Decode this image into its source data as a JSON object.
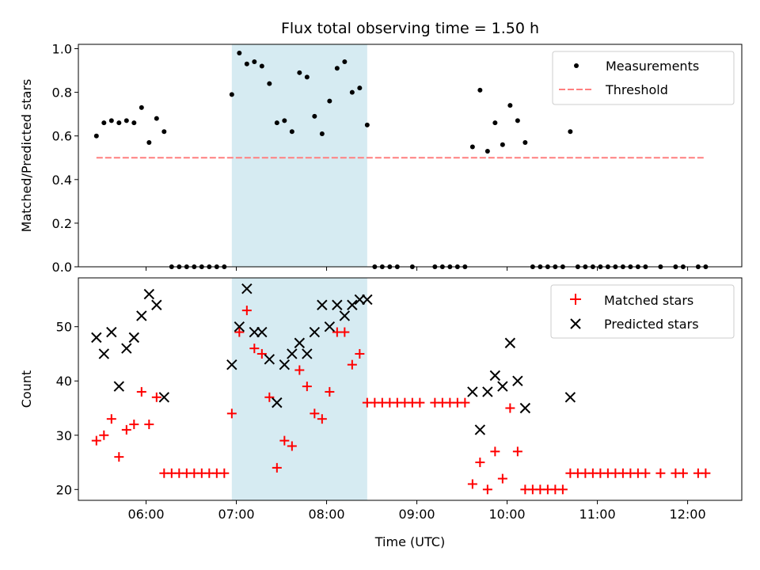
{
  "chart_data": [
    {
      "type": "scatter",
      "title": "Flux total observing time = 1.50 h",
      "xlabel": "",
      "ylabel": "Matched/Predicted stars",
      "ylim": [
        0,
        1.02
      ],
      "xlim": [
        "05:15",
        "12:36"
      ],
      "x_ticks": [
        "06:00",
        "07:00",
        "08:00",
        "09:00",
        "10:00",
        "11:00",
        "12:00"
      ],
      "y_ticks": [
        "0.0",
        "0.2",
        "0.4",
        "0.6",
        "0.8",
        "1.0"
      ],
      "shaded_span": [
        "06:57",
        "08:27"
      ],
      "shaded_color": "#add8e6",
      "legend_position": "upper right",
      "series": [
        {
          "name": "Measurements",
          "marker": "dot",
          "color": "#000000",
          "points": [
            [
              "05:27",
              0.6
            ],
            [
              "05:32",
              0.66
            ],
            [
              "05:37",
              0.67
            ],
            [
              "05:42",
              0.66
            ],
            [
              "05:47",
              0.67
            ],
            [
              "05:52",
              0.66
            ],
            [
              "05:57",
              0.73
            ],
            [
              "06:02",
              0.57
            ],
            [
              "06:07",
              0.68
            ],
            [
              "06:12",
              0.62
            ],
            [
              "06:17",
              0
            ],
            [
              "06:22",
              0
            ],
            [
              "06:27",
              0
            ],
            [
              "06:32",
              0
            ],
            [
              "06:37",
              0
            ],
            [
              "06:42",
              0
            ],
            [
              "06:47",
              0
            ],
            [
              "06:52",
              0
            ],
            [
              "06:57",
              0.79
            ],
            [
              "07:02",
              0.98
            ],
            [
              "07:07",
              0.93
            ],
            [
              "07:12",
              0.94
            ],
            [
              "07:17",
              0.92
            ],
            [
              "07:22",
              0.84
            ],
            [
              "07:27",
              0.66
            ],
            [
              "07:32",
              0.67
            ],
            [
              "07:37",
              0.62
            ],
            [
              "07:42",
              0.89
            ],
            [
              "07:47",
              0.87
            ],
            [
              "07:52",
              0.69
            ],
            [
              "07:57",
              0.61
            ],
            [
              "08:02",
              0.76
            ],
            [
              "08:07",
              0.91
            ],
            [
              "08:12",
              0.94
            ],
            [
              "08:17",
              0.8
            ],
            [
              "08:22",
              0.82
            ],
            [
              "08:27",
              0.65
            ],
            [
              "08:32",
              0
            ],
            [
              "08:37",
              0
            ],
            [
              "08:42",
              0
            ],
            [
              "08:47",
              0
            ],
            [
              "08:57",
              0
            ],
            [
              "09:12",
              0
            ],
            [
              "09:17",
              0
            ],
            [
              "09:22",
              0
            ],
            [
              "09:27",
              0
            ],
            [
              "09:32",
              0
            ],
            [
              "09:37",
              0.55
            ],
            [
              "09:42",
              0.81
            ],
            [
              "09:47",
              0.53
            ],
            [
              "09:52",
              0.66
            ],
            [
              "09:57",
              0.56
            ],
            [
              "10:02",
              0.74
            ],
            [
              "10:07",
              0.67
            ],
            [
              "10:12",
              0.57
            ],
            [
              "10:17",
              0
            ],
            [
              "10:22",
              0
            ],
            [
              "10:27",
              0
            ],
            [
              "10:32",
              0
            ],
            [
              "10:37",
              0
            ],
            [
              "10:47",
              0
            ],
            [
              "10:52",
              0
            ],
            [
              "10:57",
              0
            ],
            [
              "11:02",
              0
            ],
            [
              "11:07",
              0
            ],
            [
              "11:12",
              0
            ],
            [
              "11:17",
              0
            ],
            [
              "11:22",
              0
            ],
            [
              "11:27",
              0
            ],
            [
              "11:32",
              0
            ],
            [
              "11:42",
              0
            ],
            [
              "11:52",
              0
            ],
            [
              "11:57",
              0
            ],
            [
              "12:07",
              0
            ],
            [
              "12:12",
              0
            ],
            [
              "10:42",
              0.62
            ]
          ]
        },
        {
          "name": "Threshold",
          "marker": "dashed-line",
          "color": "#ff7f7f",
          "points": [
            [
              "05:27",
              0.5
            ],
            [
              "12:12",
              0.5
            ]
          ]
        }
      ]
    },
    {
      "type": "scatter",
      "title": "",
      "xlabel": "Time (UTC)",
      "ylabel": "Count",
      "ylim": [
        18,
        59
      ],
      "xlim": [
        "05:15",
        "12:36"
      ],
      "x_ticks": [
        "06:00",
        "07:00",
        "08:00",
        "09:00",
        "10:00",
        "11:00",
        "12:00"
      ],
      "y_ticks": [
        "20",
        "30",
        "40",
        "50"
      ],
      "shaded_span": [
        "06:57",
        "08:27"
      ],
      "shaded_color": "#add8e6",
      "legend_position": "upper right",
      "series": [
        {
          "name": "Matched stars",
          "marker": "plus",
          "color": "#ff0000",
          "points": [
            [
              "05:27",
              29
            ],
            [
              "05:32",
              30
            ],
            [
              "05:37",
              33
            ],
            [
              "05:42",
              26
            ],
            [
              "05:47",
              31
            ],
            [
              "05:52",
              32
            ],
            [
              "05:57",
              38
            ],
            [
              "06:02",
              32
            ],
            [
              "06:07",
              37
            ],
            [
              "06:12",
              23
            ],
            [
              "06:17",
              23
            ],
            [
              "06:22",
              23
            ],
            [
              "06:27",
              23
            ],
            [
              "06:32",
              23
            ],
            [
              "06:37",
              23
            ],
            [
              "06:42",
              23
            ],
            [
              "06:47",
              23
            ],
            [
              "06:52",
              23
            ],
            [
              "06:57",
              34
            ],
            [
              "07:02",
              49
            ],
            [
              "07:07",
              53
            ],
            [
              "07:12",
              46
            ],
            [
              "07:17",
              45
            ],
            [
              "07:22",
              37
            ],
            [
              "07:27",
              24
            ],
            [
              "07:32",
              29
            ],
            [
              "07:37",
              28
            ],
            [
              "07:42",
              42
            ],
            [
              "07:47",
              39
            ],
            [
              "07:52",
              34
            ],
            [
              "07:57",
              33
            ],
            [
              "08:02",
              38
            ],
            [
              "08:07",
              49
            ],
            [
              "08:12",
              49
            ],
            [
              "08:17",
              43
            ],
            [
              "08:22",
              45
            ],
            [
              "08:27",
              36
            ],
            [
              "08:32",
              36
            ],
            [
              "08:37",
              36
            ],
            [
              "08:42",
              36
            ],
            [
              "08:47",
              36
            ],
            [
              "08:52",
              36
            ],
            [
              "08:57",
              36
            ],
            [
              "09:02",
              36
            ],
            [
              "09:12",
              36
            ],
            [
              "09:17",
              36
            ],
            [
              "09:22",
              36
            ],
            [
              "09:27",
              36
            ],
            [
              "09:32",
              36
            ],
            [
              "09:37",
              21
            ],
            [
              "09:42",
              25
            ],
            [
              "09:47",
              20
            ],
            [
              "09:52",
              27
            ],
            [
              "09:57",
              22
            ],
            [
              "10:02",
              35
            ],
            [
              "10:07",
              27
            ],
            [
              "10:12",
              20
            ],
            [
              "10:17",
              20
            ],
            [
              "10:22",
              20
            ],
            [
              "10:27",
              20
            ],
            [
              "10:32",
              20
            ],
            [
              "10:37",
              20
            ],
            [
              "10:42",
              23
            ],
            [
              "10:47",
              23
            ],
            [
              "10:52",
              23
            ],
            [
              "10:57",
              23
            ],
            [
              "11:02",
              23
            ],
            [
              "11:07",
              23
            ],
            [
              "11:12",
              23
            ],
            [
              "11:17",
              23
            ],
            [
              "11:22",
              23
            ],
            [
              "11:27",
              23
            ],
            [
              "11:32",
              23
            ],
            [
              "11:42",
              23
            ],
            [
              "11:52",
              23
            ],
            [
              "11:57",
              23
            ],
            [
              "12:07",
              23
            ],
            [
              "12:12",
              23
            ]
          ]
        },
        {
          "name": "Predicted stars",
          "marker": "x",
          "color": "#000000",
          "points": [
            [
              "05:27",
              48
            ],
            [
              "05:32",
              45
            ],
            [
              "05:37",
              49
            ],
            [
              "05:42",
              39
            ],
            [
              "05:47",
              46
            ],
            [
              "05:52",
              48
            ],
            [
              "05:57",
              52
            ],
            [
              "06:02",
              56
            ],
            [
              "06:07",
              54
            ],
            [
              "06:12",
              37
            ],
            [
              "06:57",
              43
            ],
            [
              "07:02",
              50
            ],
            [
              "07:07",
              57
            ],
            [
              "07:12",
              49
            ],
            [
              "07:17",
              49
            ],
            [
              "07:22",
              44
            ],
            [
              "07:27",
              36
            ],
            [
              "07:32",
              43
            ],
            [
              "07:37",
              45
            ],
            [
              "07:42",
              47
            ],
            [
              "07:47",
              45
            ],
            [
              "07:52",
              49
            ],
            [
              "07:57",
              54
            ],
            [
              "08:02",
              50
            ],
            [
              "08:07",
              54
            ],
            [
              "08:12",
              52
            ],
            [
              "08:17",
              54
            ],
            [
              "08:22",
              55
            ],
            [
              "08:27",
              55
            ],
            [
              "09:37",
              38
            ],
            [
              "09:42",
              31
            ],
            [
              "09:47",
              38
            ],
            [
              "09:52",
              41
            ],
            [
              "09:57",
              39
            ],
            [
              "10:02",
              47
            ],
            [
              "10:07",
              40
            ],
            [
              "10:12",
              35
            ],
            [
              "10:42",
              37
            ]
          ]
        }
      ]
    }
  ]
}
